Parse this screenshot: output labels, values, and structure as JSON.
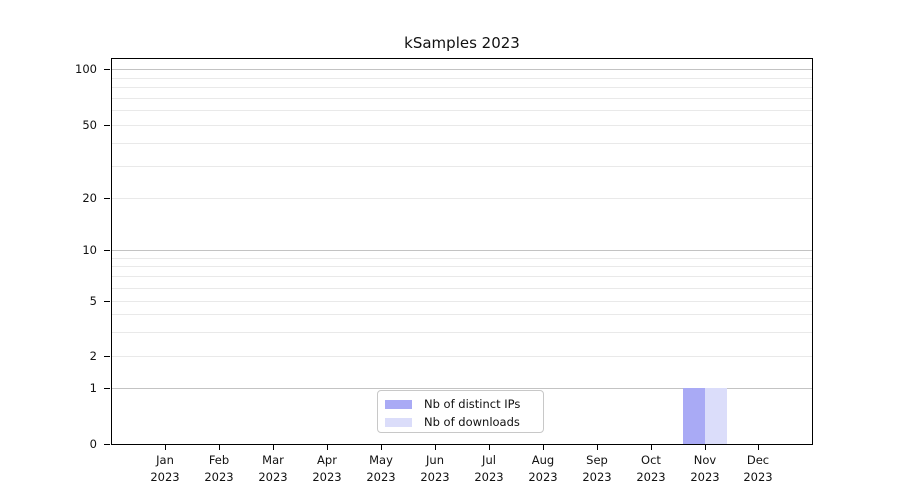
{
  "chart_data": {
    "type": "bar",
    "title": "kSamples 2023",
    "categories": [
      "Jan 2023",
      "Feb 2023",
      "Mar 2023",
      "Apr 2023",
      "May 2023",
      "Jun 2023",
      "Jul 2023",
      "Aug 2023",
      "Sep 2023",
      "Oct 2023",
      "Nov 2023",
      "Dec 2023"
    ],
    "series": [
      {
        "name": "Nb of distinct IPs",
        "color": "#a9aaf5",
        "values": [
          0,
          0,
          0,
          0,
          0,
          0,
          0,
          0,
          0,
          0,
          1,
          0
        ]
      },
      {
        "name": "Nb of downloads",
        "color": "#dbddfa",
        "values": [
          0,
          0,
          0,
          0,
          0,
          0,
          0,
          0,
          0,
          0,
          1,
          0
        ]
      }
    ],
    "xlabel": "",
    "ylabel": "",
    "y_axis": {
      "scale": "log-like above 1, linear 0-1 segment",
      "ticks": [
        0,
        1,
        2,
        5,
        10,
        20,
        50,
        100
      ],
      "major_gridline_values": [
        1,
        10,
        100
      ],
      "minor_gridline_values": [
        2,
        3,
        4,
        5,
        6,
        7,
        8,
        9,
        20,
        30,
        40,
        50,
        60,
        70,
        80,
        90
      ],
      "range": [
        0,
        110
      ]
    },
    "legend": {
      "position": "lower center",
      "entries": [
        "Nb of distinct IPs",
        "Nb of downloads"
      ]
    },
    "grid": "horizontal only",
    "colors": {
      "major_grid": "#c3c3c3",
      "minor_grid": "#e9e9e9",
      "axis": "#000000",
      "text": "#111111",
      "background": "#ffffff"
    }
  }
}
